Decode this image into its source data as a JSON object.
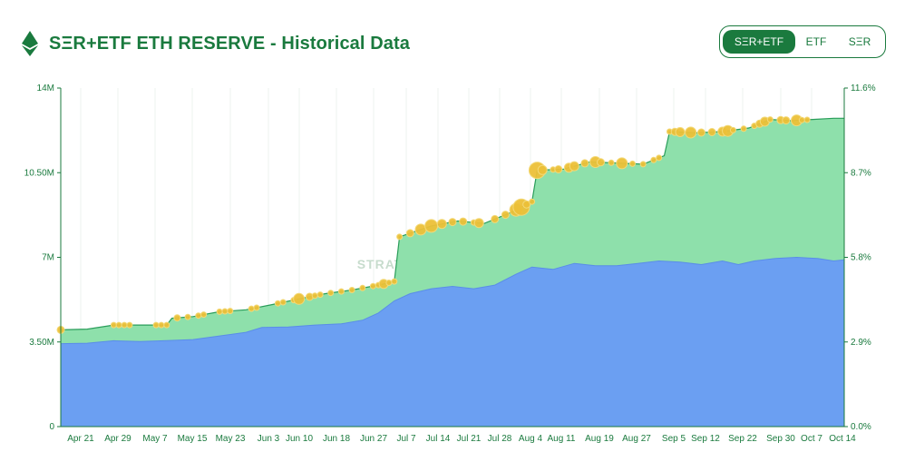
{
  "header": {
    "title": "SΞR+ETF ETH RESERVE - Historical Data",
    "icon": "ethereum-icon"
  },
  "toggle": {
    "options": [
      "SΞR+ETF",
      "ETF",
      "SΞR"
    ],
    "selected": "SΞR+ETF"
  },
  "watermark": "STRATEGICETHRESERVE.XYZ",
  "colors": {
    "accent": "#1a7a3e",
    "etf_fill": "#6b9ff2",
    "total_fill": "#8ee0ab",
    "total_line": "#2a9d5a",
    "bubble": "#ecc038"
  },
  "chart_data": {
    "type": "area",
    "title": "SΞR+ETF ETH RESERVE - Historical Data",
    "x_tick_labels": [
      "Apr 21",
      "Apr 29",
      "May 7",
      "May 15",
      "May 23",
      "Jun 3",
      "Jun 10",
      "Jun 18",
      "Jun 27",
      "Jul 7",
      "Jul 14",
      "Jul 21",
      "Jul 28",
      "Aug 4",
      "Aug 11",
      "Aug 19",
      "Aug 27",
      "Sep 5",
      "Sep 12",
      "Sep 22",
      "Sep 30",
      "Oct 7",
      "Oct 14"
    ],
    "y_left_ticks": [
      "0",
      "3.50M",
      "7M",
      "10.50M",
      "14M"
    ],
    "y_right_ticks": [
      "0.0%",
      "2.9%",
      "5.8%",
      "8.7%",
      "11.6%"
    ],
    "ylim": [
      0,
      14000000
    ],
    "y2lim": [
      0,
      11.6
    ],
    "grid": "vertical",
    "series": [
      {
        "name": "ETF",
        "points": [
          [
            0,
            3.43
          ],
          [
            5,
            3.45
          ],
          [
            10,
            3.55
          ],
          [
            15,
            3.52
          ],
          [
            20,
            3.56
          ],
          [
            25,
            3.6
          ],
          [
            30,
            3.75
          ],
          [
            35,
            3.9
          ],
          [
            38,
            4.1
          ],
          [
            43,
            4.12
          ],
          [
            48,
            4.2
          ],
          [
            53,
            4.25
          ],
          [
            57,
            4.4
          ],
          [
            60,
            4.7
          ],
          [
            63,
            5.2
          ],
          [
            66,
            5.5
          ],
          [
            70,
            5.7
          ],
          [
            74,
            5.8
          ],
          [
            78,
            5.7
          ],
          [
            82,
            5.85
          ],
          [
            86,
            6.3
          ],
          [
            89,
            6.6
          ],
          [
            93,
            6.5
          ],
          [
            97,
            6.75
          ],
          [
            101,
            6.65
          ],
          [
            105,
            6.65
          ],
          [
            109,
            6.75
          ],
          [
            113,
            6.85
          ],
          [
            117,
            6.8
          ],
          [
            121,
            6.7
          ],
          [
            125,
            6.85
          ],
          [
            128,
            6.7
          ],
          [
            131,
            6.85
          ],
          [
            135,
            6.95
          ],
          [
            139,
            7.0
          ],
          [
            143,
            6.95
          ],
          [
            146,
            6.85
          ],
          [
            148,
            6.9
          ]
        ]
      },
      {
        "name": "SΞR+ETF",
        "points": [
          [
            0,
            4.0
          ],
          [
            5,
            4.03
          ],
          [
            10,
            4.2
          ],
          [
            15,
            4.2
          ],
          [
            20,
            4.2
          ],
          [
            21,
            4.48
          ],
          [
            25,
            4.55
          ],
          [
            30,
            4.75
          ],
          [
            35,
            4.83
          ],
          [
            40,
            5.05
          ],
          [
            45,
            5.28
          ],
          [
            50,
            5.5
          ],
          [
            55,
            5.65
          ],
          [
            60,
            5.85
          ],
          [
            63,
            6.0
          ],
          [
            64,
            7.85
          ],
          [
            70,
            8.3
          ],
          [
            75,
            8.5
          ],
          [
            80,
            8.4
          ],
          [
            85,
            8.85
          ],
          [
            89,
            9.3
          ],
          [
            90,
            10.6
          ],
          [
            95,
            10.65
          ],
          [
            100,
            10.95
          ],
          [
            105,
            10.9
          ],
          [
            110,
            10.85
          ],
          [
            114,
            11.2
          ],
          [
            115,
            12.2
          ],
          [
            120,
            12.15
          ],
          [
            125,
            12.2
          ],
          [
            130,
            12.35
          ],
          [
            134,
            12.7
          ],
          [
            138,
            12.65
          ],
          [
            142,
            12.7
          ],
          [
            146,
            12.75
          ],
          [
            148,
            12.75
          ]
        ]
      }
    ]
  }
}
